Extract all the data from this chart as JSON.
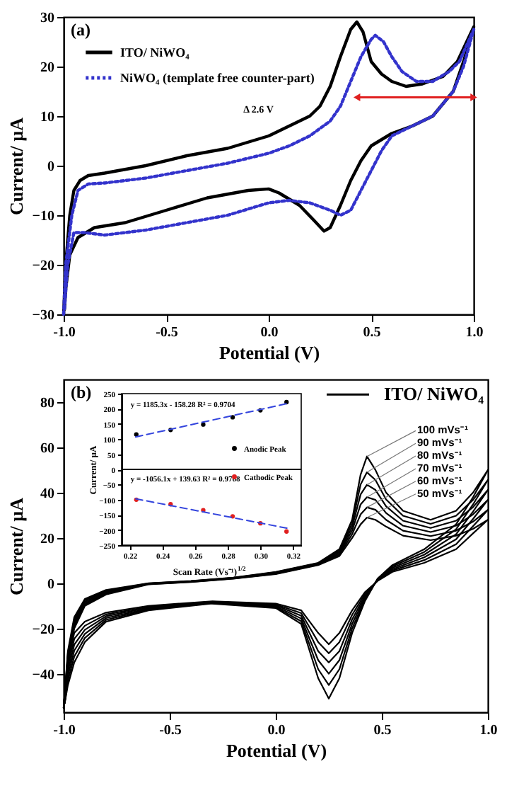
{
  "chart_data": [
    {
      "type": "line",
      "title": "(a)",
      "xlabel": "Potential (V)",
      "ylabel": "Current/ µA",
      "xlim": [
        -1,
        1
      ],
      "ylim": [
        -30,
        30
      ],
      "xticks": [
        {
          "value": -1,
          "label": "-1.0"
        },
        {
          "value": -0.5,
          "label": "-0.5"
        },
        {
          "value": 0,
          "label": "0.0"
        },
        {
          "value": 0.5,
          "label": "0.5"
        },
        {
          "value": 1,
          "label": "1.0"
        }
      ],
      "yticks": [
        -30,
        -20,
        -10,
        0,
        10,
        20,
        30
      ],
      "grid": false,
      "legend": "top left",
      "annotations": [
        "Δ 2.6 V"
      ],
      "series": [
        {
          "name": "ITO/ NiWO₄",
          "color": "#000000",
          "line_style": "solid",
          "x": [
            -1.0,
            -0.99,
            -0.97,
            -0.95,
            -0.92,
            -0.88,
            -0.8,
            -0.6,
            -0.4,
            -0.2,
            0,
            0.1,
            0.2,
            0.25,
            0.3,
            0.35,
            0.4,
            0.43,
            0.46,
            0.5,
            0.55,
            0.6,
            0.67,
            0.75,
            0.85,
            0.92,
            1.0,
            0.95,
            0.9,
            0.8,
            0.7,
            0.6,
            0.5,
            0.45,
            0.4,
            0.35,
            0.3,
            0.27,
            0.22,
            0.15,
            0.05,
            0,
            -0.1,
            -0.3,
            -0.5,
            -0.7,
            -0.85,
            -0.93,
            -0.97,
            -0.99,
            -0.996
          ],
          "values": [
            -30,
            -20,
            -10,
            -5,
            -3,
            -2,
            -1.5,
            0,
            2,
            3.5,
            6,
            8,
            10,
            12,
            16,
            22,
            27.5,
            29,
            27,
            21,
            18.5,
            17,
            16,
            16.5,
            18,
            21,
            28,
            21,
            15,
            10,
            8,
            6.5,
            4,
            1,
            -3,
            -8,
            -12.5,
            -13.2,
            -11,
            -8,
            -5.5,
            -4.7,
            -5,
            -6.5,
            -9,
            -11.5,
            -12.5,
            -14.5,
            -18,
            -25,
            -29
          ]
        },
        {
          "name": "NiWO₄ (template free counter-part)",
          "color": "#3333cc",
          "line_style": "dotted",
          "x": [
            -1.0,
            -0.99,
            -0.96,
            -0.93,
            -0.88,
            -0.8,
            -0.6,
            -0.4,
            -0.2,
            0,
            0.1,
            0.2,
            0.3,
            0.35,
            0.4,
            0.45,
            0.5,
            0.52,
            0.56,
            0.6,
            0.65,
            0.72,
            0.8,
            0.88,
            0.93,
            1.0,
            0.95,
            0.9,
            0.8,
            0.7,
            0.6,
            0.55,
            0.5,
            0.45,
            0.4,
            0.35,
            0.3,
            0.2,
            0.1,
            0,
            -0.2,
            -0.4,
            -0.6,
            -0.8,
            -0.9,
            -0.95,
            -0.98,
            -0.996
          ],
          "values": [
            -30,
            -20,
            -10,
            -5,
            -3.7,
            -3.5,
            -2.5,
            -1,
            0.5,
            2.5,
            4,
            6,
            9,
            12,
            17,
            22,
            25.5,
            26.3,
            25,
            22,
            19,
            17,
            17,
            19,
            21,
            27.5,
            20,
            15,
            10,
            8,
            6,
            3,
            -1,
            -5,
            -9,
            -10,
            -9,
            -7.5,
            -7,
            -7.5,
            -10,
            -11.5,
            -13,
            -14,
            -13.5,
            -13.5,
            -20,
            -29
          ]
        }
      ]
    },
    {
      "type": "line",
      "title": "(b)",
      "xlabel": "Potential (V)",
      "ylabel": "Current/ µA",
      "xlim": [
        -1,
        1
      ],
      "ylim": [
        -57,
        90
      ],
      "xticks": [
        {
          "value": -1,
          "label": "-1.0"
        },
        {
          "value": -0.5,
          "label": "-0.5"
        },
        {
          "value": 0,
          "label": "0.0"
        },
        {
          "value": 0.5,
          "label": "0.5"
        },
        {
          "value": 1,
          "label": "1.0"
        }
      ],
      "yticks": [
        -40,
        -20,
        0,
        20,
        40,
        60,
        80
      ],
      "grid": false,
      "legend": false,
      "annotations": [
        "ITO/ NiWO₄"
      ],
      "x": [
        -1.0,
        -0.98,
        -0.95,
        -0.9,
        -0.8,
        -0.6,
        -0.4,
        -0.2,
        0.0,
        0.2,
        0.3,
        0.36,
        0.4,
        0.43,
        0.47,
        0.52,
        0.6,
        0.73,
        0.85,
        0.93,
        1.0,
        0.93,
        0.85,
        0.7,
        0.55,
        0.48,
        0.42,
        0.36,
        0.3,
        0.25,
        0.2,
        0.12,
        0.0,
        -0.3,
        -0.6,
        -0.8,
        -0.9,
        -0.95,
        -0.98,
        -0.995
      ],
      "series": [
        {
          "name": "100 mVs⁻¹",
          "color": "#000000",
          "values": [
            -55,
            -30,
            -15,
            -7,
            -3,
            0,
            1,
            2.5,
            5,
            9,
            15,
            28,
            48,
            56,
            50,
            40,
            32,
            28,
            32,
            40,
            50,
            38,
            26,
            15,
            8,
            2,
            -8,
            -22,
            -42,
            -51,
            -42,
            -18,
            -11,
            -9,
            -12,
            -17,
            -26,
            -35,
            -45,
            -53
          ]
        },
        {
          "name": "90 mVs⁻¹",
          "color": "#000000",
          "values": [
            -55,
            -31,
            -16,
            -7.6,
            -3.4,
            -0.1,
            0.9,
            2.4,
            4.8,
            8.8,
            14.4,
            26.4,
            43.6,
            49,
            45.6,
            37,
            29.8,
            26.2,
            29.8,
            36.8,
            45.6,
            34.8,
            23.8,
            13.8,
            7.4,
            1.8,
            -7.2,
            -20,
            -38,
            -45,
            -38,
            -16.8,
            -10.6,
            -8.8,
            -11.6,
            -16.2,
            -24.2,
            -32.4,
            -43,
            -53
          ]
        },
        {
          "name": "80 mVs⁻¹",
          "color": "#000000",
          "values": [
            -55,
            -32,
            -17,
            -8.2,
            -3.8,
            -0.2,
            0.8,
            2.3,
            4.6,
            8.6,
            13.8,
            24.8,
            39.2,
            43.5,
            41.2,
            34,
            27.6,
            24.4,
            27.6,
            33.6,
            41.2,
            31.6,
            21.6,
            12.6,
            6.8,
            1.6,
            -6.4,
            -18,
            -34,
            -40,
            -34,
            -15.6,
            -10.2,
            -8.6,
            -11.2,
            -15.4,
            -22.4,
            -29.8,
            -41,
            -53
          ]
        },
        {
          "name": "70 mVs⁻¹",
          "color": "#000000",
          "values": [
            -55,
            -33,
            -18,
            -8.8,
            -4.2,
            -0.3,
            0.7,
            2.2,
            4.4,
            8.4,
            13.2,
            23.2,
            34.8,
            38,
            36.8,
            31,
            25.4,
            22.6,
            25.4,
            30.4,
            36.8,
            28.4,
            19.4,
            11.4,
            6.2,
            1.4,
            -5.6,
            -16,
            -30,
            -35,
            -30,
            -14.4,
            -9.8,
            -8.4,
            -10.8,
            -14.6,
            -20.6,
            -27.2,
            -39,
            -53
          ]
        },
        {
          "name": "60 mVs⁻¹",
          "color": "#000000",
          "values": [
            -55,
            -34,
            -19,
            -9.4,
            -4.6,
            -0.4,
            0.6,
            2.1,
            4.2,
            8.2,
            12.6,
            21.6,
            30.4,
            33.5,
            32.4,
            28,
            23.2,
            20.8,
            23.2,
            27.2,
            32.4,
            25.2,
            17.2,
            10.2,
            5.6,
            1.2,
            -4.8,
            -14,
            -26,
            -31,
            -26,
            -13.2,
            -9.4,
            -8.2,
            -10.4,
            -13.8,
            -18.8,
            -24.6,
            -37,
            -53
          ]
        },
        {
          "name": "50 mVs⁻¹",
          "color": "#000000",
          "values": [
            -55,
            -35,
            -20,
            -10,
            -5,
            -0.5,
            0.5,
            2,
            4,
            8,
            12,
            20,
            26,
            29,
            28,
            25,
            21,
            19,
            21,
            24,
            28,
            22,
            15,
            9,
            5,
            1,
            -4,
            -12,
            -22,
            -27,
            -22,
            -12,
            -9,
            -8,
            -10,
            -13,
            -17,
            -22,
            -35,
            -53
          ]
        }
      ]
    },
    {
      "type": "scatter",
      "xlabel": "Scan Rate (Vs⁻¹)$^{1/2}$",
      "ylabel": "Current/ µA",
      "xlim": [
        0.215,
        0.325
      ],
      "ylim": [
        -250,
        250
      ],
      "xticks": [
        0.22,
        0.24,
        0.26,
        0.28,
        {
          "value": 0.3,
          "label": "0.30"
        },
        0.32
      ],
      "yticks": [
        -250,
        -200,
        -150,
        -100,
        -50,
        0,
        50,
        100,
        150,
        200,
        250
      ],
      "grid": false,
      "legend": "right",
      "ref_lines": [
        {
          "axis": "y",
          "value": 0
        }
      ],
      "annotations": [
        "y = 1185.3x - 158.28 R² = 0.9704",
        "y = -1056.1x + 139.63 R² = 0.9768"
      ],
      "series": [
        {
          "name": "Anodic Peak",
          "color": "#000000",
          "marker": "circle",
          "x": [
            0.224,
            0.245,
            0.265,
            0.283,
            0.3,
            0.316
          ],
          "values": [
            115,
            130,
            148,
            172,
            195,
            222
          ]
        },
        {
          "name": "Cathodic Peak",
          "color": "#e02020",
          "marker": "circle",
          "x": [
            0.224,
            0.245,
            0.265,
            0.283,
            0.3,
            0.316
          ],
          "values": [
            -100,
            -115,
            -135,
            -155,
            -178,
            -205
          ]
        },
        {
          "type": "line",
          "color": "#3344dd",
          "line_style": "dashed",
          "x": [
            0.2236,
            0.3162
          ],
          "values": [
            107,
            217
          ]
        },
        {
          "type": "line",
          "color": "#3344dd",
          "line_style": "dashed",
          "x": [
            0.2236,
            0.3162
          ],
          "values": [
            -97,
            -194
          ]
        }
      ]
    }
  ]
}
